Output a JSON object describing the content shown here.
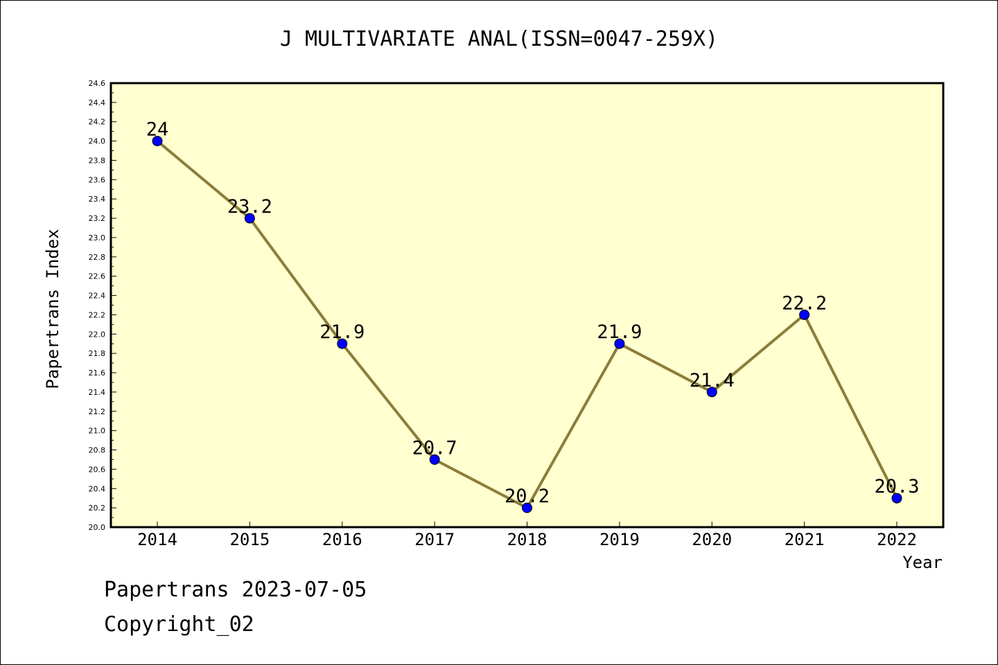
{
  "chart_data": {
    "type": "line",
    "title": "J MULTIVARIATE ANAL(ISSN=0047-259X)",
    "xlabel": "Year",
    "ylabel": "Papertrans Index",
    "categories": [
      "2014",
      "2015",
      "2016",
      "2017",
      "2018",
      "2019",
      "2020",
      "2021",
      "2022"
    ],
    "values": [
      24,
      23.2,
      21.9,
      20.7,
      20.2,
      21.9,
      21.4,
      22.2,
      20.3
    ],
    "data_labels": [
      "24",
      "23.2",
      "21.9",
      "20.7",
      "20.2",
      "21.9",
      "21.4",
      "22.2",
      "20.3"
    ],
    "ylim": [
      20.0,
      24.6
    ],
    "y_major_step": 0.2,
    "y_tick_labels": [
      "20.0",
      "20.2",
      "20.4",
      "20.6",
      "20.8",
      "21.0",
      "21.2",
      "21.4",
      "21.6",
      "21.8",
      "22.0",
      "22.2",
      "22.4",
      "22.6",
      "22.8",
      "23.0",
      "23.2",
      "23.4",
      "23.6",
      "23.8",
      "24.0",
      "24.2",
      "24.4",
      "24.6"
    ],
    "grid": false,
    "colors": {
      "line": "#8b7d3a",
      "marker": "#0000ff",
      "plot_background": "#ffffd0"
    }
  },
  "footer": {
    "line1": "Papertrans 2023-07-05",
    "line2": "Copyright_02"
  }
}
